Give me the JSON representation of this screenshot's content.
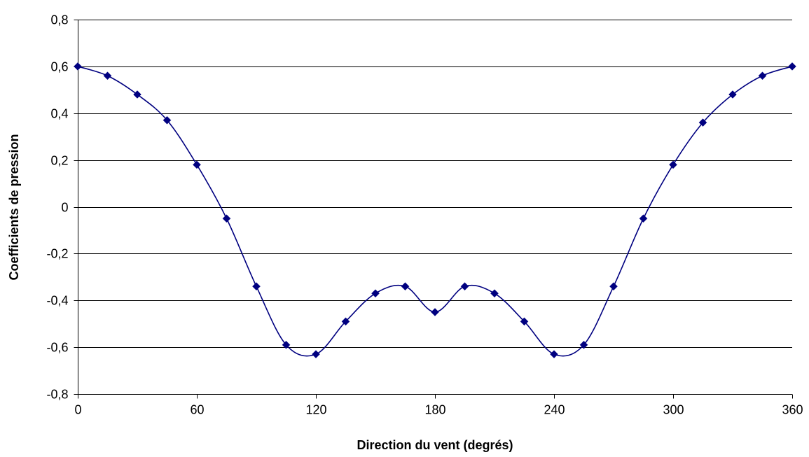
{
  "chart_data": {
    "type": "line",
    "title": "",
    "xlabel": "Direction du vent (degrés)",
    "ylabel": "Coefficients de pression",
    "xlim": [
      0,
      360
    ],
    "ylim": [
      -0.8,
      0.8
    ],
    "x_ticks": [
      0,
      60,
      120,
      180,
      240,
      300,
      360
    ],
    "x_tick_labels": [
      "0",
      "60",
      "120",
      "180",
      "240",
      "300",
      "360"
    ],
    "y_ticks": [
      0.8,
      0.6,
      0.4,
      0.2,
      0,
      -0.2,
      -0.4,
      -0.6,
      -0.8
    ],
    "y_tick_labels": [
      "0,8",
      "0,6",
      "0,4",
      "0,2",
      "0",
      "-0,2",
      "-0,4",
      "-0,6",
      "-0,8"
    ],
    "grid": "horizontal",
    "legend": "none",
    "line_color": "#000080",
    "marker": "diamond",
    "x": [
      0,
      15,
      30,
      45,
      60,
      75,
      90,
      105,
      120,
      135,
      150,
      165,
      180,
      195,
      210,
      225,
      240,
      255,
      270,
      285,
      300,
      315,
      330,
      345,
      360
    ],
    "y": [
      0.6,
      0.56,
      0.48,
      0.37,
      0.18,
      -0.05,
      -0.34,
      -0.59,
      -0.63,
      -0.49,
      -0.37,
      -0.34,
      -0.45,
      -0.34,
      -0.37,
      -0.49,
      -0.63,
      -0.59,
      -0.34,
      -0.05,
      0.18,
      0.36,
      0.48,
      0.56,
      0.6
    ]
  }
}
